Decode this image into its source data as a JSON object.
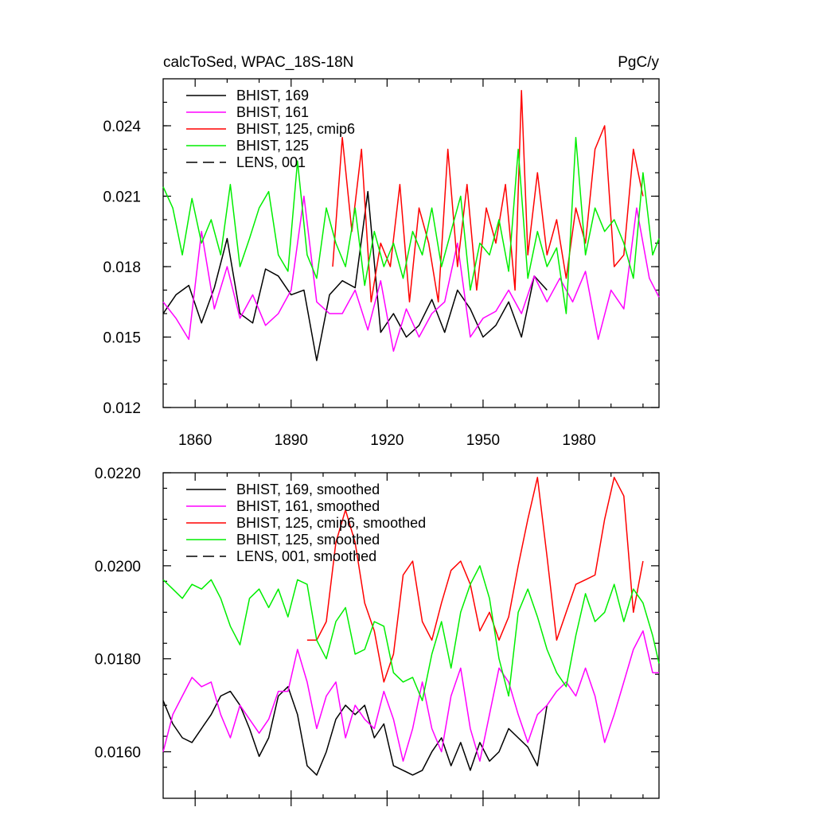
{
  "chart_data": [
    {
      "type": "line",
      "title": "calcToSed, WPAC_18S-18N",
      "units": "PgC/y",
      "xlabel": "",
      "ylabel": "",
      "xlim": [
        1850,
        2005
      ],
      "ylim": [
        0.012,
        0.026
      ],
      "x_ticks": [
        "1860",
        "1890",
        "1920",
        "1950",
        "1980"
      ],
      "y_ticks": [
        "0.012",
        "0.015",
        "0.018",
        "0.021",
        "0.024"
      ],
      "legend": "top-left",
      "series": [
        {
          "name": "BHIST, 169",
          "color": "#000000",
          "dash": "solid",
          "x": [
            1850,
            1854,
            1858,
            1862,
            1866,
            1870,
            1874,
            1878,
            1882,
            1886,
            1890,
            1894,
            1898,
            1902,
            1906,
            1910,
            1914,
            1918,
            1922,
            1926,
            1930,
            1934,
            1938,
            1942,
            1946,
            1950,
            1954,
            1958,
            1962,
            1966,
            1970
          ],
          "values": [
            0.016,
            0.0168,
            0.0172,
            0.0156,
            0.0171,
            0.0192,
            0.016,
            0.0156,
            0.0179,
            0.0176,
            0.0168,
            0.017,
            0.014,
            0.0168,
            0.0174,
            0.0171,
            0.0212,
            0.0152,
            0.016,
            0.015,
            0.0155,
            0.0166,
            0.0152,
            0.017,
            0.0162,
            0.015,
            0.0155,
            0.0165,
            0.015,
            0.0176,
            0.017
          ]
        },
        {
          "name": "BHIST, 161",
          "color": "#ff00ff",
          "dash": "solid",
          "x": [
            1850,
            1854,
            1858,
            1862,
            1866,
            1870,
            1874,
            1878,
            1882,
            1886,
            1890,
            1894,
            1898,
            1902,
            1906,
            1910,
            1914,
            1918,
            1922,
            1926,
            1930,
            1934,
            1938,
            1942,
            1946,
            1950,
            1954,
            1958,
            1962,
            1966,
            1970,
            1974,
            1978,
            1982,
            1986,
            1990,
            1994,
            1998,
            2002,
            2005
          ],
          "values": [
            0.0165,
            0.0158,
            0.0149,
            0.0195,
            0.0162,
            0.018,
            0.0158,
            0.0168,
            0.0155,
            0.016,
            0.017,
            0.021,
            0.0165,
            0.016,
            0.016,
            0.017,
            0.0153,
            0.0174,
            0.0144,
            0.0162,
            0.015,
            0.016,
            0.0165,
            0.019,
            0.015,
            0.0158,
            0.0161,
            0.017,
            0.016,
            0.0176,
            0.0165,
            0.0175,
            0.0165,
            0.0178,
            0.0149,
            0.017,
            0.0162,
            0.0205,
            0.0175,
            0.0167
          ]
        },
        {
          "name": "BHIST, 125, cmip6",
          "color": "#ff0000",
          "dash": "solid",
          "x": [
            1903,
            1906,
            1909,
            1912,
            1915,
            1918,
            1921,
            1924,
            1927,
            1930,
            1933,
            1936,
            1939,
            1942,
            1945,
            1948,
            1951,
            1954,
            1957,
            1960,
            1962,
            1964,
            1967,
            1970,
            1973,
            1976,
            1979,
            1982,
            1985,
            1988,
            1991,
            1994,
            1997,
            2000
          ],
          "values": [
            0.018,
            0.0235,
            0.0195,
            0.023,
            0.0165,
            0.019,
            0.018,
            0.0215,
            0.0165,
            0.0205,
            0.019,
            0.0165,
            0.023,
            0.018,
            0.0215,
            0.017,
            0.0205,
            0.019,
            0.0215,
            0.017,
            0.0255,
            0.0185,
            0.022,
            0.0185,
            0.02,
            0.0175,
            0.0205,
            0.019,
            0.023,
            0.024,
            0.018,
            0.0185,
            0.023,
            0.021
          ]
        },
        {
          "name": "BHIST, 125",
          "color": "#00ee00",
          "dash": "solid",
          "x": [
            1850,
            1853,
            1856,
            1859,
            1862,
            1865,
            1868,
            1871,
            1874,
            1877,
            1880,
            1883,
            1886,
            1889,
            1892,
            1895,
            1898,
            1901,
            1904,
            1907,
            1910,
            1913,
            1916,
            1919,
            1922,
            1925,
            1928,
            1931,
            1934,
            1937,
            1940,
            1943,
            1946,
            1949,
            1952,
            1955,
            1958,
            1961,
            1964,
            1967,
            1970,
            1973,
            1976,
            1979,
            1982,
            1985,
            1988,
            1991,
            1994,
            1997,
            2000,
            2003,
            2005
          ],
          "values": [
            0.0214,
            0.0205,
            0.0185,
            0.0209,
            0.019,
            0.02,
            0.0185,
            0.0215,
            0.018,
            0.0192,
            0.0205,
            0.0212,
            0.0185,
            0.0178,
            0.0225,
            0.0185,
            0.0175,
            0.0205,
            0.019,
            0.018,
            0.0205,
            0.0172,
            0.0195,
            0.018,
            0.019,
            0.0175,
            0.0195,
            0.0185,
            0.0205,
            0.018,
            0.0195,
            0.021,
            0.017,
            0.019,
            0.0185,
            0.02,
            0.0178,
            0.023,
            0.0175,
            0.0195,
            0.018,
            0.0188,
            0.016,
            0.0235,
            0.0185,
            0.0205,
            0.0195,
            0.02,
            0.019,
            0.0175,
            0.022,
            0.0185,
            0.0192
          ]
        },
        {
          "name": "LENS, 001",
          "color": "#000000",
          "dash": "dashed",
          "x": [],
          "values": []
        }
      ]
    },
    {
      "type": "line",
      "title": "",
      "units": "",
      "xlabel": "",
      "ylabel": "",
      "xlim": [
        1850,
        2005
      ],
      "ylim": [
        0.015,
        0.022
      ],
      "x_ticks": [],
      "y_ticks": [
        "0.0160",
        "0.0180",
        "0.0200",
        "0.0220"
      ],
      "legend": "top-left",
      "series": [
        {
          "name": "BHIST, 169, smoothed",
          "color": "#000000",
          "dash": "solid",
          "x": [
            1850,
            1853,
            1856,
            1859,
            1862,
            1865,
            1868,
            1871,
            1874,
            1877,
            1880,
            1883,
            1886,
            1889,
            1892,
            1895,
            1898,
            1901,
            1904,
            1907,
            1910,
            1913,
            1916,
            1919,
            1922,
            1925,
            1928,
            1931,
            1934,
            1937,
            1940,
            1943,
            1946,
            1949,
            1952,
            1955,
            1958,
            1961,
            1964,
            1967,
            1970
          ],
          "values": [
            0.0171,
            0.0166,
            0.0163,
            0.0162,
            0.0165,
            0.0168,
            0.0172,
            0.0173,
            0.017,
            0.0165,
            0.0159,
            0.0163,
            0.0172,
            0.0174,
            0.0168,
            0.0157,
            0.0155,
            0.016,
            0.0167,
            0.017,
            0.0168,
            0.017,
            0.0163,
            0.0166,
            0.0157,
            0.0156,
            0.0155,
            0.0156,
            0.016,
            0.0163,
            0.0157,
            0.0162,
            0.0156,
            0.0162,
            0.0158,
            0.016,
            0.0165,
            0.0163,
            0.0161,
            0.0157,
            0.017
          ]
        },
        {
          "name": "BHIST, 161, smoothed",
          "color": "#ff00ff",
          "dash": "solid",
          "x": [
            1850,
            1853,
            1856,
            1859,
            1862,
            1865,
            1868,
            1871,
            1874,
            1877,
            1880,
            1883,
            1886,
            1889,
            1892,
            1895,
            1898,
            1901,
            1904,
            1907,
            1910,
            1913,
            1916,
            1919,
            1922,
            1925,
            1928,
            1931,
            1934,
            1937,
            1940,
            1943,
            1946,
            1949,
            1952,
            1955,
            1958,
            1961,
            1964,
            1967,
            1970,
            1973,
            1976,
            1979,
            1982,
            1985,
            1988,
            1991,
            1994,
            1997,
            2000,
            2003,
            2005
          ],
          "values": [
            0.016,
            0.0168,
            0.0172,
            0.0176,
            0.0174,
            0.0175,
            0.0168,
            0.0163,
            0.017,
            0.0167,
            0.0164,
            0.0167,
            0.0173,
            0.0173,
            0.0182,
            0.0175,
            0.0165,
            0.0172,
            0.0175,
            0.0163,
            0.017,
            0.0167,
            0.0165,
            0.0173,
            0.0167,
            0.0158,
            0.0165,
            0.0175,
            0.0165,
            0.016,
            0.0172,
            0.0178,
            0.0165,
            0.0158,
            0.0168,
            0.0178,
            0.0175,
            0.0168,
            0.0162,
            0.0168,
            0.017,
            0.0173,
            0.0175,
            0.0172,
            0.0178,
            0.0172,
            0.0162,
            0.0168,
            0.0175,
            0.0182,
            0.0186,
            0.0177,
            0.0177
          ]
        },
        {
          "name": "BHIST, 125, cmip6, smoothed",
          "color": "#ff0000",
          "dash": "solid",
          "x": [
            1895,
            1898,
            1901,
            1904,
            1907,
            1910,
            1913,
            1916,
            1919,
            1922,
            1925,
            1928,
            1931,
            1934,
            1937,
            1940,
            1943,
            1946,
            1949,
            1952,
            1955,
            1958,
            1961,
            1964,
            1967,
            1970,
            1973,
            1976,
            1979,
            1982,
            1985,
            1988,
            1991,
            1994,
            1997,
            2000
          ],
          "values": [
            0.0184,
            0.0184,
            0.0188,
            0.0205,
            0.0212,
            0.0205,
            0.0192,
            0.0186,
            0.0175,
            0.0181,
            0.0198,
            0.0201,
            0.0188,
            0.0184,
            0.0192,
            0.0199,
            0.0201,
            0.0196,
            0.0186,
            0.019,
            0.0184,
            0.0189,
            0.02,
            0.021,
            0.0219,
            0.0202,
            0.0184,
            0.019,
            0.0196,
            0.0197,
            0.0198,
            0.021,
            0.0219,
            0.0215,
            0.019,
            0.0201
          ]
        },
        {
          "name": "BHIST, 125, smoothed",
          "color": "#00ee00",
          "dash": "solid",
          "x": [
            1850,
            1853,
            1856,
            1859,
            1862,
            1865,
            1868,
            1871,
            1874,
            1877,
            1880,
            1883,
            1886,
            1889,
            1892,
            1895,
            1898,
            1901,
            1904,
            1907,
            1910,
            1913,
            1916,
            1919,
            1922,
            1925,
            1928,
            1931,
            1934,
            1937,
            1940,
            1943,
            1946,
            1949,
            1952,
            1955,
            1958,
            1961,
            1964,
            1967,
            1970,
            1973,
            1976,
            1979,
            1982,
            1985,
            1988,
            1991,
            1994,
            1997,
            2000,
            2003,
            2005
          ],
          "values": [
            0.0197,
            0.0195,
            0.0193,
            0.0196,
            0.0195,
            0.0197,
            0.0193,
            0.0187,
            0.0183,
            0.0193,
            0.0195,
            0.0191,
            0.0195,
            0.0189,
            0.0197,
            0.0196,
            0.0184,
            0.018,
            0.0188,
            0.0191,
            0.0181,
            0.0182,
            0.0188,
            0.0187,
            0.0177,
            0.0175,
            0.0176,
            0.0171,
            0.0181,
            0.0188,
            0.0178,
            0.019,
            0.0196,
            0.02,
            0.0193,
            0.018,
            0.0172,
            0.019,
            0.0195,
            0.0189,
            0.0182,
            0.0177,
            0.0174,
            0.0185,
            0.0194,
            0.0188,
            0.019,
            0.0196,
            0.0188,
            0.0195,
            0.0192,
            0.0185,
            0.0179
          ]
        },
        {
          "name": "LENS, 001, smoothed",
          "color": "#000000",
          "dash": "dashed",
          "x": [],
          "values": []
        }
      ]
    }
  ]
}
